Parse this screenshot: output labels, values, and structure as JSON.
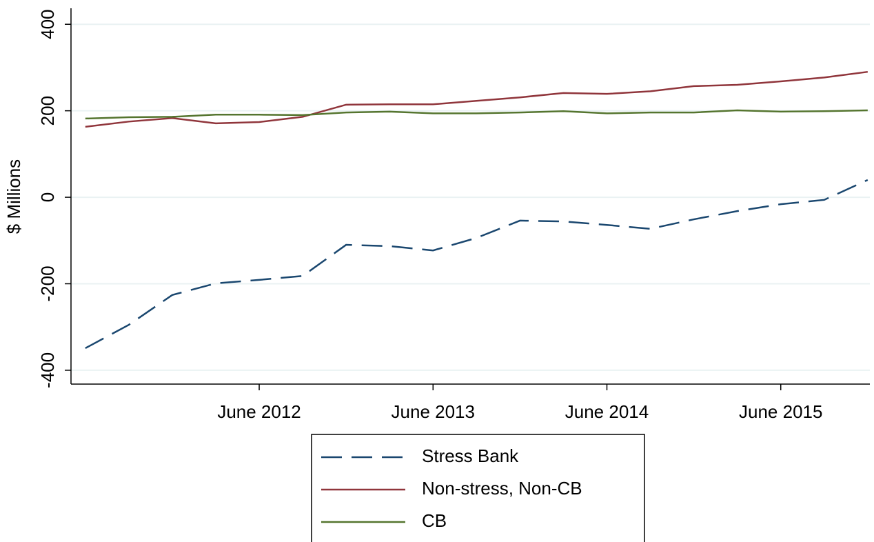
{
  "chart_data": {
    "type": "line",
    "y_label": "$ Millions",
    "categories": [
      null,
      null,
      null,
      null,
      "June 2012",
      null,
      null,
      null,
      "June 2013",
      null,
      null,
      null,
      "June 2014",
      null,
      null,
      null,
      "June 2015",
      null,
      null
    ],
    "series": [
      {
        "name": "Stress Bank",
        "color": "#1a476f",
        "dash": "dashed",
        "values": [
          -349,
          -295,
          -226,
          -199,
          -191,
          -182,
          -110,
          -113,
          -123,
          -94,
          -54,
          -56,
          -64,
          -73,
          -51,
          -32,
          -16,
          -6,
          40
        ]
      },
      {
        "name": "Non-stress, Non-CB",
        "color": "#90353b",
        "dash": "solid",
        "values": [
          163,
          175,
          183,
          171,
          174,
          186,
          214,
          215,
          215,
          223,
          231,
          241,
          239,
          245,
          257,
          260,
          268,
          277,
          290
        ]
      },
      {
        "name": "CB",
        "color": "#55752f",
        "dash": "solid",
        "values": [
          182,
          185,
          186,
          191,
          191,
          190,
          196,
          198,
          194,
          194,
          196,
          199,
          194,
          196,
          196,
          201,
          198,
          199,
          201
        ]
      }
    ],
    "ylim": [
      -432,
      437
    ],
    "yticks": [
      -400,
      -200,
      0,
      200,
      400
    ],
    "grid": true,
    "legend": "bottom"
  }
}
